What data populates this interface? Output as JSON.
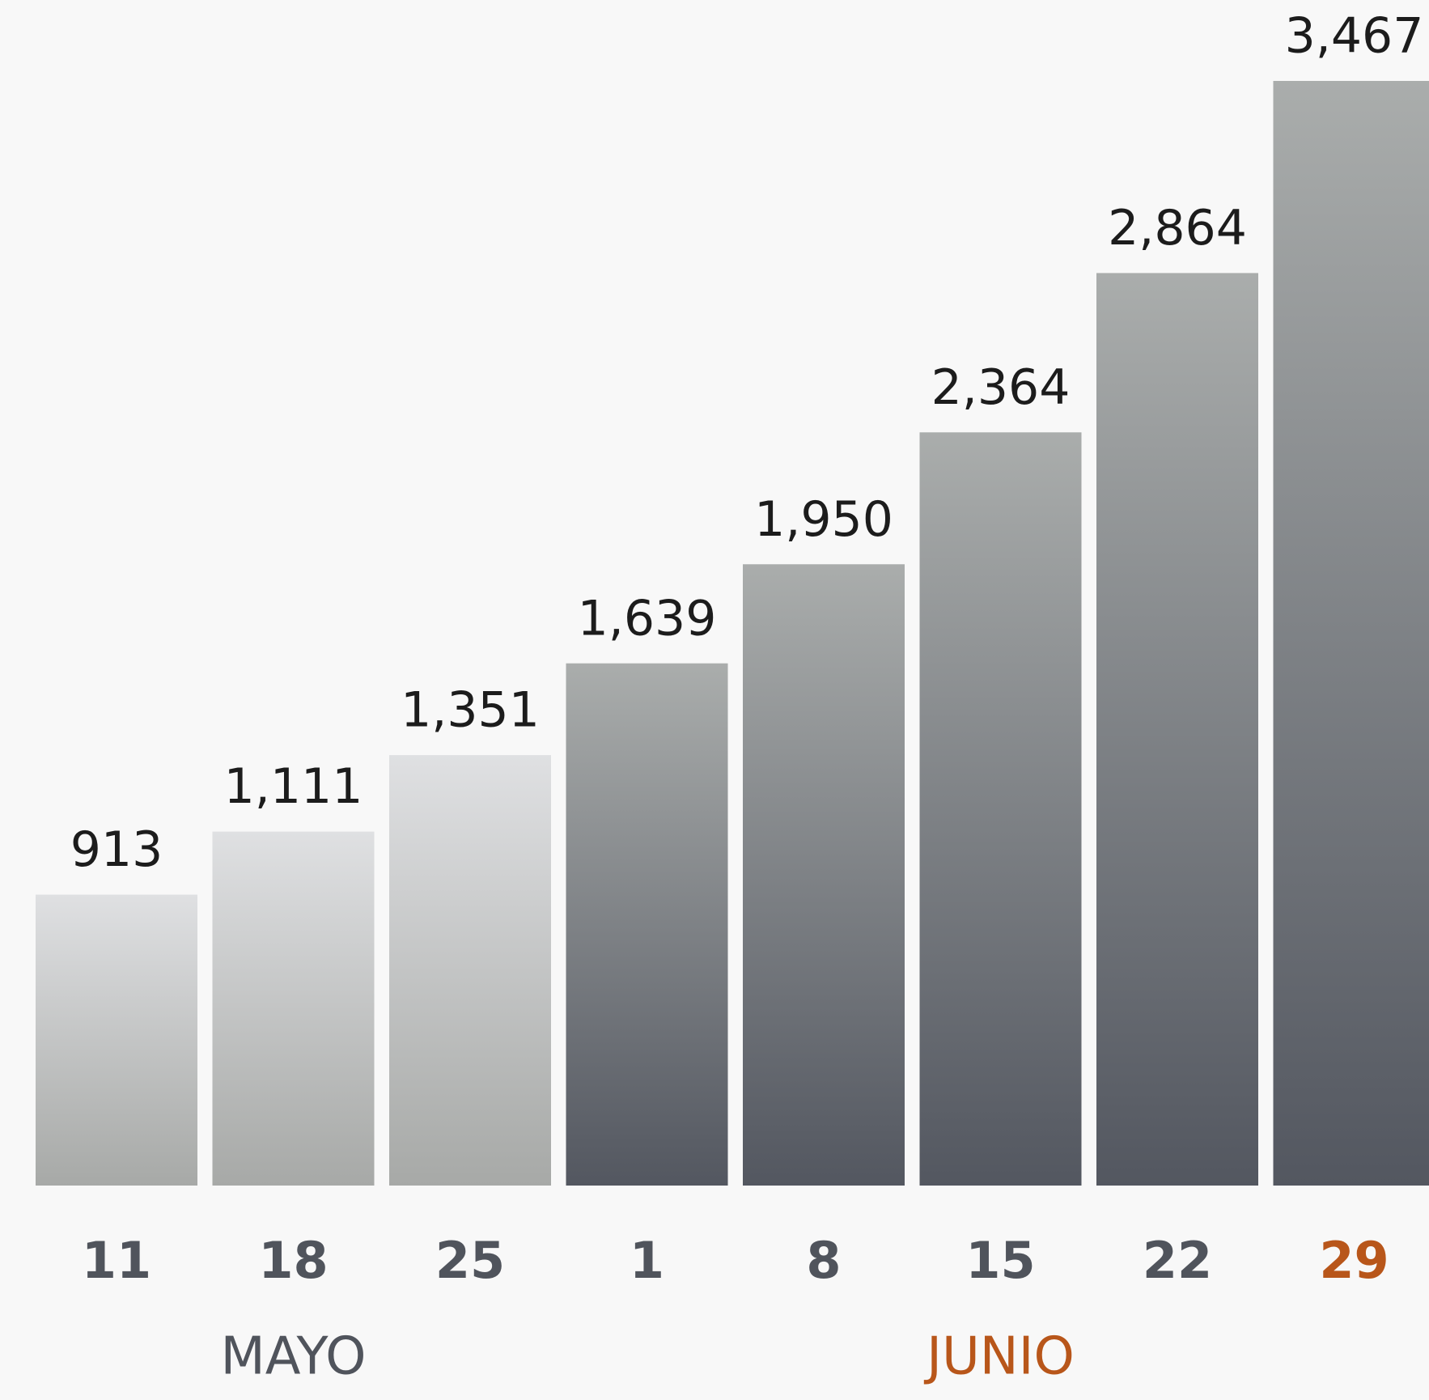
{
  "chart_data": {
    "type": "bar",
    "categories": [
      "11",
      "18",
      "25",
      "1",
      "8",
      "15",
      "22",
      "29"
    ],
    "values": [
      913,
      1111,
      1351,
      1639,
      1950,
      2364,
      2864,
      3467
    ],
    "value_labels": [
      "913",
      "1,111",
      "1,351",
      "1,639",
      "1,950",
      "2,364",
      "2,864",
      "3,467"
    ],
    "groups": [
      {
        "name": "MAYO",
        "first": 0,
        "last": 2,
        "color": "#50545c",
        "bar_colors": [
          "#dfe0e2",
          "#a7a9a7"
        ]
      },
      {
        "name": "JUNIO",
        "first": 3,
        "last": 7,
        "color": "#b8561a",
        "bar_colors": [
          "#aaadac",
          "#535760"
        ]
      }
    ],
    "category_color": "#50545c",
    "highlight": {
      "category": 7,
      "color": "#b8561a"
    }
  }
}
